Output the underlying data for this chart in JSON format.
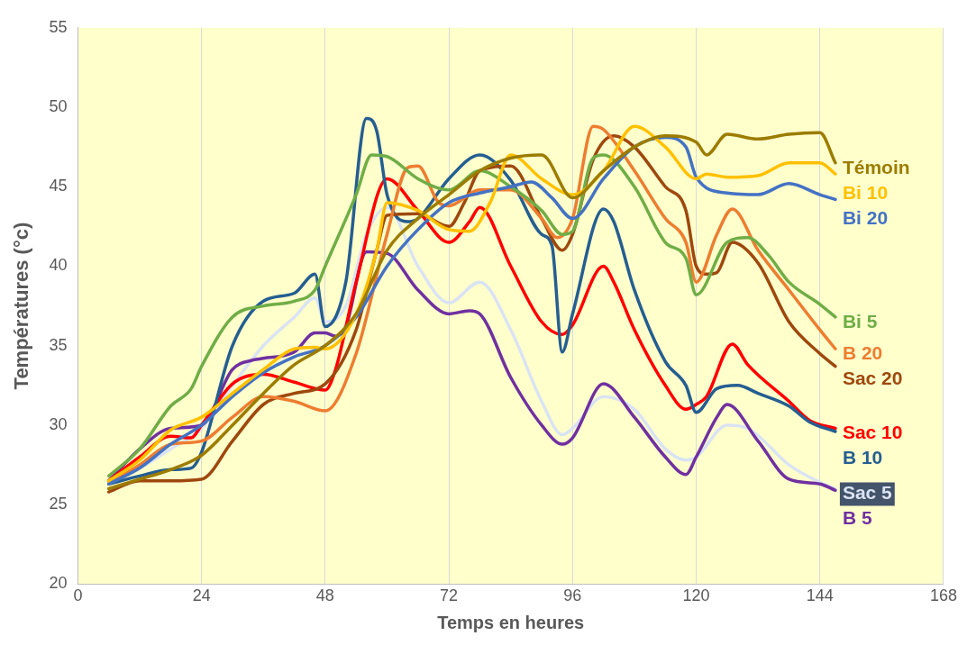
{
  "chart_data": {
    "type": "line",
    "xlabel": "Temps en heures",
    "ylabel": "Températures (°c)",
    "xlim": [
      0,
      168
    ],
    "xticks": [
      0,
      24,
      48,
      72,
      96,
      120,
      144,
      168
    ],
    "ylim": [
      20,
      55
    ],
    "yticks": [
      20,
      25,
      30,
      35,
      40,
      45,
      50,
      55
    ],
    "grid": "x",
    "legend": false,
    "marker": "none",
    "line_style": "solid",
    "series": [
      {
        "name": "Témoin",
        "color": "#9c7c00",
        "x": [
          6,
          12,
          18,
          24,
          30,
          36,
          42,
          48,
          54,
          60,
          66,
          72,
          78,
          84,
          90,
          96,
          102,
          108,
          114,
          120,
          122,
          126,
          132,
          138,
          144,
          147
        ],
        "values": [
          26,
          26.6,
          27.2,
          28.1,
          30,
          32,
          33.8,
          35,
          37,
          41,
          43,
          44.5,
          46,
          46.8,
          47,
          44.3,
          46,
          47.5,
          48.2,
          47.8,
          47,
          48.3,
          48,
          48.3,
          48.4,
          46.5
        ]
      },
      {
        "name": "Bi 10",
        "color": "#ffc000",
        "x": [
          6,
          12,
          18,
          24,
          30,
          36,
          42,
          46,
          48,
          54,
          58,
          60,
          66,
          72,
          76,
          80,
          84,
          90,
          96,
          102,
          108,
          114,
          120,
          122,
          126,
          132,
          138,
          144,
          147
        ],
        "values": [
          26.5,
          27.8,
          29.7,
          30.5,
          32,
          33.5,
          34.8,
          34.9,
          34.8,
          37,
          41,
          44,
          43.5,
          42.3,
          42.2,
          44,
          47,
          45.5,
          44.5,
          46,
          48.8,
          47.5,
          45.5,
          45.8,
          45.6,
          45.7,
          46.5,
          46.5,
          45.8
        ]
      },
      {
        "name": "Bi 20",
        "color": "#4472c4",
        "x": [
          6,
          12,
          18,
          24,
          30,
          36,
          42,
          48,
          54,
          60,
          66,
          72,
          78,
          84,
          88,
          92,
          96,
          102,
          108,
          114,
          118,
          120,
          126,
          132,
          138,
          144,
          147
        ],
        "values": [
          26.3,
          27.3,
          28.8,
          30,
          31.8,
          33.3,
          34.3,
          35,
          36.8,
          40,
          42.3,
          44,
          44.6,
          45,
          45.3,
          44.3,
          43,
          45.5,
          47.5,
          48.1,
          47.5,
          45.6,
          44.6,
          44.5,
          45.2,
          44.5,
          44.2
        ]
      },
      {
        "name": "Bi 5",
        "color": "#70ad47",
        "x": [
          6,
          12,
          18,
          22,
          24,
          30,
          36,
          42,
          46,
          48,
          54,
          57,
          60,
          66,
          72,
          78,
          84,
          90,
          94,
          96,
          100,
          102,
          108,
          114,
          118,
          120,
          126,
          130,
          134,
          138,
          144,
          147
        ],
        "values": [
          26.8,
          28.5,
          31.2,
          32.3,
          33.7,
          36.8,
          37.5,
          37.8,
          38.5,
          40,
          44.5,
          47,
          46.9,
          45.5,
          44.8,
          46,
          45,
          43.5,
          42,
          42.2,
          46.8,
          47,
          45,
          41.5,
          40.5,
          38.2,
          41.5,
          41.8,
          40.7,
          39,
          37.6,
          36.8
        ]
      },
      {
        "name": "B 20",
        "color": "#ed7d31",
        "x": [
          6,
          12,
          18,
          24,
          30,
          36,
          42,
          48,
          54,
          60,
          64,
          66,
          70,
          72,
          78,
          84,
          90,
          93,
          96,
          100,
          102,
          108,
          114,
          118,
          120,
          124,
          127,
          132,
          138,
          144,
          147
        ],
        "values": [
          26.3,
          27.5,
          28.8,
          29,
          30.5,
          31.8,
          31.5,
          30.9,
          34.5,
          42,
          46.2,
          46.3,
          44,
          43.8,
          44.8,
          44.8,
          43,
          41.8,
          43,
          48.8,
          48.6,
          46,
          43,
          41.5,
          39,
          42,
          43.6,
          41,
          38.5,
          36,
          34.8
        ]
      },
      {
        "name": "Sac 20",
        "color": "#9e480e",
        "x": [
          6,
          12,
          18,
          24,
          30,
          36,
          42,
          48,
          54,
          58,
          60,
          66,
          72,
          75,
          78,
          84,
          90,
          94,
          96,
          100,
          104,
          108,
          114,
          118,
          120,
          122,
          124,
          127,
          132,
          138,
          144,
          147
        ],
        "values": [
          25.8,
          26.5,
          26.5,
          26.6,
          29,
          31.3,
          32,
          32.6,
          36,
          41,
          43.2,
          43.3,
          42.5,
          44,
          46,
          46.3,
          43,
          41,
          42,
          46.7,
          48.2,
          47.5,
          45,
          43.5,
          40,
          39.5,
          39.6,
          41.5,
          40.2,
          36.5,
          34.5,
          33.7
        ]
      },
      {
        "name": "B 10",
        "color": "#255e91",
        "x": [
          6,
          12,
          18,
          22,
          24,
          30,
          36,
          42,
          46,
          48,
          52,
          56,
          58,
          60,
          64,
          66,
          72,
          78,
          84,
          90,
          92,
          94,
          96,
          102,
          104,
          108,
          114,
          118,
          120,
          124,
          128,
          132,
          138,
          142,
          147
        ],
        "values": [
          26.3,
          26.8,
          27.2,
          27.3,
          28.3,
          35,
          37.8,
          38.3,
          39.5,
          36.2,
          39,
          49.3,
          48.5,
          44.5,
          42.8,
          43,
          45.5,
          47,
          45.4,
          42,
          41.3,
          34.6,
          37,
          43.6,
          42.8,
          38.5,
          34,
          32.5,
          30.8,
          32.3,
          32.5,
          32,
          31.2,
          30.2,
          29.6
        ]
      },
      {
        "name": "Sac 10",
        "color": "#ff0000",
        "x": [
          6,
          12,
          18,
          22,
          24,
          30,
          36,
          42,
          48,
          50,
          54,
          60,
          66,
          72,
          76,
          78,
          84,
          90,
          94,
          96,
          102,
          104,
          108,
          114,
          118,
          120,
          122,
          127,
          130,
          138,
          142,
          147
        ],
        "values": [
          26.5,
          28,
          29.3,
          29.2,
          30,
          32.6,
          33.2,
          32.7,
          32.2,
          33.5,
          39,
          45.5,
          43.5,
          41.5,
          42.8,
          43.7,
          40,
          36.5,
          35.7,
          36.3,
          40,
          39,
          36,
          32.5,
          31,
          31.3,
          31.8,
          35.1,
          33.8,
          31.5,
          30.3,
          29.8
        ]
      },
      {
        "name": "B 5",
        "color": "#7030a0",
        "x": [
          6,
          12,
          18,
          24,
          30,
          34,
          36,
          42,
          46,
          48,
          50,
          52,
          56,
          60,
          66,
          72,
          76,
          78,
          84,
          90,
          94,
          96,
          102,
          108,
          114,
          118,
          120,
          124,
          126,
          132,
          138,
          144,
          147
        ],
        "values": [
          26.5,
          28.5,
          29.8,
          30,
          33.5,
          34.1,
          34.2,
          34.6,
          35.8,
          35.8,
          35.6,
          36.2,
          40.9,
          40.8,
          38.5,
          37,
          37.2,
          37,
          33,
          30,
          28.8,
          29.2,
          32.6,
          30.5,
          28,
          26.9,
          28,
          30.5,
          31.3,
          29,
          26.6,
          26.3,
          25.9
        ]
      },
      {
        "name": "Sac 5",
        "color": "#dae3f3",
        "x": [
          6,
          12,
          18,
          24,
          30,
          36,
          42,
          46,
          48,
          52,
          56,
          60,
          66,
          72,
          78,
          84,
          90,
          94,
          96,
          102,
          108,
          114,
          118,
          120,
          126,
          130,
          138,
          144,
          147
        ],
        "values": [
          26.4,
          27.3,
          28.5,
          29.8,
          32.5,
          35,
          36.8,
          38,
          36.5,
          37.5,
          42,
          43.7,
          40,
          37.7,
          39,
          36,
          31.5,
          29.4,
          29.8,
          31.8,
          31,
          28.5,
          27.8,
          28,
          30,
          29.8,
          27.5,
          26.4,
          26
        ]
      }
    ]
  }
}
